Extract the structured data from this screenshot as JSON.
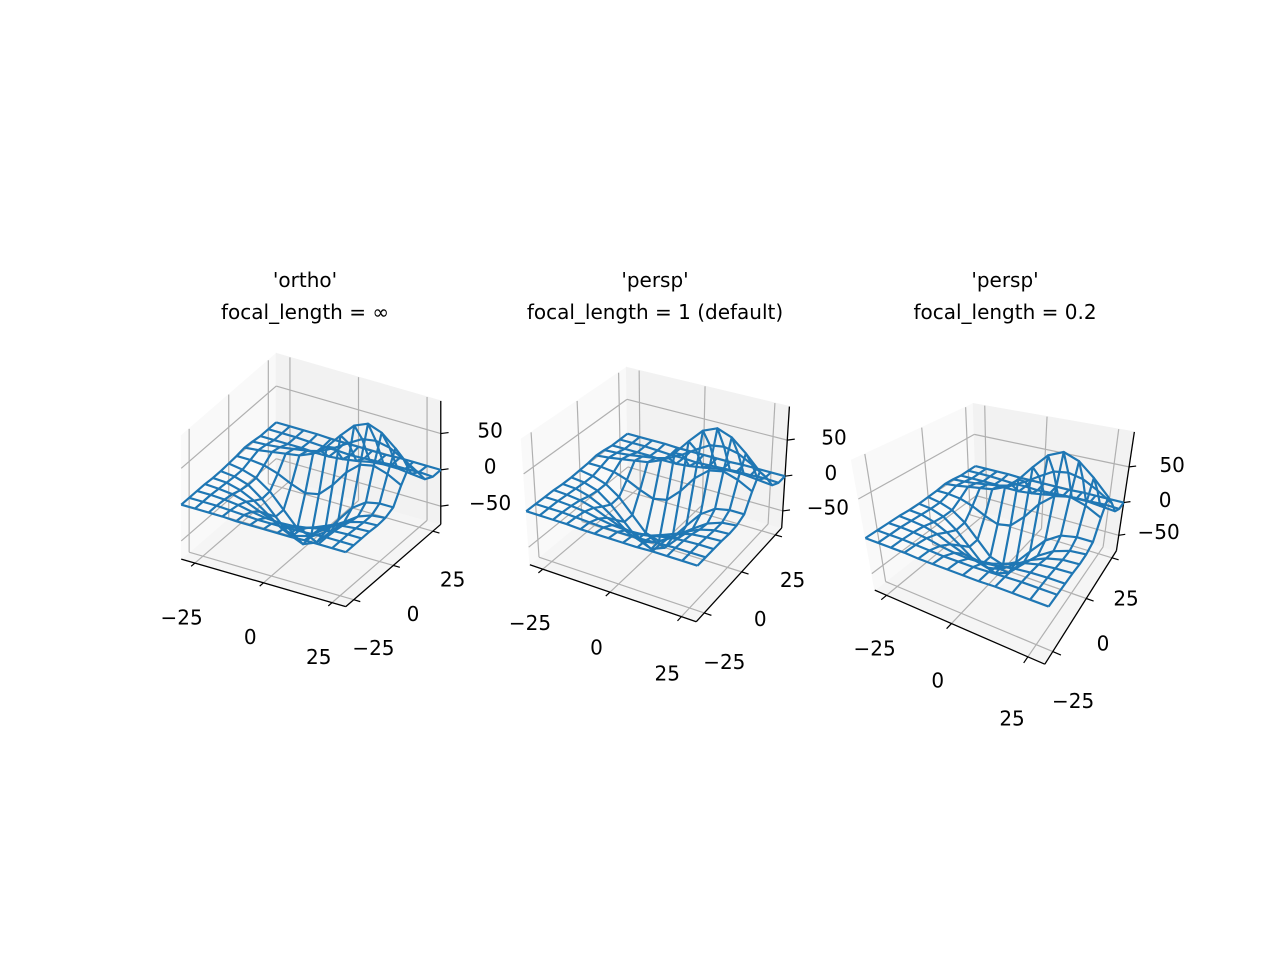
{
  "chart_data": [
    {
      "type": "wireframe",
      "title": [
        "'ortho'",
        "focal_length = ∞"
      ],
      "projection": "ortho",
      "color": "#1f77b4",
      "x": [
        -30,
        -25,
        -20,
        -15,
        -10,
        -5,
        0,
        5,
        10,
        15,
        20,
        25,
        30
      ],
      "y": [
        -30,
        -25,
        -20,
        -15,
        -10,
        -5,
        0,
        5,
        10,
        15,
        20,
        25,
        30
      ],
      "z": [
        [
          0,
          0,
          0,
          0,
          -1,
          -1,
          -1,
          -1,
          -1,
          0,
          0,
          0,
          0
        ],
        [
          0,
          0,
          0,
          -1,
          -2,
          -3,
          -3,
          -3,
          -2,
          -1,
          0,
          0,
          0
        ],
        [
          0,
          0,
          -1,
          -3,
          -7,
          -10,
          -11,
          -10,
          -7,
          -3,
          -1,
          0,
          0
        ],
        [
          0,
          -1,
          -3,
          -8,
          -16,
          -23,
          -26,
          -23,
          -16,
          -8,
          -3,
          -1,
          0
        ],
        [
          -1,
          -2,
          -7,
          -16,
          -29,
          -43,
          -48,
          -43,
          -29,
          -16,
          -7,
          -2,
          -1
        ],
        [
          -1,
          -3,
          -9,
          -23,
          -42,
          -61,
          -69,
          -61,
          -41,
          -22,
          -9,
          -2,
          0
        ],
        [
          0,
          -3,
          -9,
          -22,
          -42,
          -62,
          -68,
          -57,
          -34,
          -12,
          1,
          5,
          5
        ],
        [
          1,
          1,
          -1,
          -7,
          -16,
          -23,
          -19,
          -1,
          22,
          38,
          42,
          36,
          26
        ],
        [
          3,
          5,
          8,
          11,
          14,
          22,
          37,
          58,
          77,
          85,
          78,
          62,
          43
        ],
        [
          2,
          3,
          5,
          8,
          11,
          16,
          26,
          38,
          49,
          52,
          48,
          38,
          26
        ],
        [
          0,
          0,
          0,
          0,
          -1,
          -1,
          1,
          4,
          8,
          10,
          10,
          8,
          6
        ],
        [
          0,
          0,
          0,
          -1,
          -2,
          -2,
          -3,
          -2,
          -1,
          0,
          0,
          1,
          0
        ],
        [
          0,
          0,
          0,
          0,
          -1,
          -1,
          -1,
          -1,
          -1,
          0,
          0,
          0,
          0
        ]
      ],
      "xlim": [
        -30,
        30
      ],
      "ylim": [
        -30,
        30
      ],
      "zlim": [
        -75,
        95
      ],
      "xticks": [
        {
          "value": -25,
          "label": "−25"
        },
        0,
        25
      ],
      "yticks": [
        {
          "value": -25,
          "label": "−25"
        },
        0,
        25
      ],
      "zticks": [
        {
          "value": -50,
          "label": "−50"
        },
        0,
        50
      ],
      "grid": true
    },
    {
      "type": "wireframe",
      "title": [
        "'persp'",
        "focal_length = 1 (default)"
      ],
      "projection": "persp",
      "focal_length": 1,
      "color": "#1f77b4",
      "x": [
        -30,
        -25,
        -20,
        -15,
        -10,
        -5,
        0,
        5,
        10,
        15,
        20,
        25,
        30
      ],
      "y": [
        -30,
        -25,
        -20,
        -15,
        -10,
        -5,
        0,
        5,
        10,
        15,
        20,
        25,
        30
      ],
      "z": [
        [
          0,
          0,
          0,
          0,
          -1,
          -1,
          -1,
          -1,
          -1,
          0,
          0,
          0,
          0
        ],
        [
          0,
          0,
          0,
          -1,
          -2,
          -3,
          -3,
          -3,
          -2,
          -1,
          0,
          0,
          0
        ],
        [
          0,
          0,
          -1,
          -3,
          -7,
          -10,
          -11,
          -10,
          -7,
          -3,
          -1,
          0,
          0
        ],
        [
          0,
          -1,
          -3,
          -8,
          -16,
          -23,
          -26,
          -23,
          -16,
          -8,
          -3,
          -1,
          0
        ],
        [
          -1,
          -2,
          -7,
          -16,
          -29,
          -43,
          -48,
          -43,
          -29,
          -16,
          -7,
          -2,
          -1
        ],
        [
          -1,
          -3,
          -9,
          -23,
          -42,
          -61,
          -69,
          -61,
          -41,
          -22,
          -9,
          -2,
          0
        ],
        [
          0,
          -3,
          -9,
          -22,
          -42,
          -62,
          -68,
          -57,
          -34,
          -12,
          1,
          5,
          5
        ],
        [
          1,
          1,
          -1,
          -7,
          -16,
          -23,
          -19,
          -1,
          22,
          38,
          42,
          36,
          26
        ],
        [
          3,
          5,
          8,
          11,
          14,
          22,
          37,
          58,
          77,
          85,
          78,
          62,
          43
        ],
        [
          2,
          3,
          5,
          8,
          11,
          16,
          26,
          38,
          49,
          52,
          48,
          38,
          26
        ],
        [
          0,
          0,
          0,
          0,
          -1,
          -1,
          1,
          4,
          8,
          10,
          10,
          8,
          6
        ],
        [
          0,
          0,
          0,
          -1,
          -2,
          -2,
          -3,
          -2,
          -1,
          0,
          0,
          1,
          0
        ],
        [
          0,
          0,
          0,
          0,
          -1,
          -1,
          -1,
          -1,
          -1,
          0,
          0,
          0,
          0
        ]
      ],
      "xlim": [
        -30,
        30
      ],
      "ylim": [
        -30,
        30
      ],
      "zlim": [
        -75,
        95
      ],
      "xticks": [
        {
          "value": -25,
          "label": "−25"
        },
        0,
        25
      ],
      "yticks": [
        {
          "value": -25,
          "label": "−25"
        },
        0,
        25
      ],
      "zticks": [
        {
          "value": -50,
          "label": "−50"
        },
        0,
        50
      ],
      "grid": true
    },
    {
      "type": "wireframe",
      "title": [
        "'persp'",
        "focal_length = 0.2"
      ],
      "projection": "persp",
      "focal_length": 0.2,
      "color": "#1f77b4",
      "x": [
        -30,
        -25,
        -20,
        -15,
        -10,
        -5,
        0,
        5,
        10,
        15,
        20,
        25,
        30
      ],
      "y": [
        -30,
        -25,
        -20,
        -15,
        -10,
        -5,
        0,
        5,
        10,
        15,
        20,
        25,
        30
      ],
      "z": [
        [
          0,
          0,
          0,
          0,
          -1,
          -1,
          -1,
          -1,
          -1,
          0,
          0,
          0,
          0
        ],
        [
          0,
          0,
          0,
          -1,
          -2,
          -3,
          -3,
          -3,
          -2,
          -1,
          0,
          0,
          0
        ],
        [
          0,
          0,
          -1,
          -3,
          -7,
          -10,
          -11,
          -10,
          -7,
          -3,
          -1,
          0,
          0
        ],
        [
          0,
          -1,
          -3,
          -8,
          -16,
          -23,
          -26,
          -23,
          -16,
          -8,
          -3,
          -1,
          0
        ],
        [
          -1,
          -2,
          -7,
          -16,
          -29,
          -43,
          -48,
          -43,
          -29,
          -16,
          -7,
          -2,
          -1
        ],
        [
          -1,
          -3,
          -9,
          -23,
          -42,
          -61,
          -69,
          -61,
          -41,
          -22,
          -9,
          -2,
          0
        ],
        [
          0,
          -3,
          -9,
          -22,
          -42,
          -62,
          -68,
          -57,
          -34,
          -12,
          1,
          5,
          5
        ],
        [
          1,
          1,
          -1,
          -7,
          -16,
          -23,
          -19,
          -1,
          22,
          38,
          42,
          36,
          26
        ],
        [
          3,
          5,
          8,
          11,
          14,
          22,
          37,
          58,
          77,
          85,
          78,
          62,
          43
        ],
        [
          2,
          3,
          5,
          8,
          11,
          16,
          26,
          38,
          49,
          52,
          48,
          38,
          26
        ],
        [
          0,
          0,
          0,
          0,
          -1,
          -1,
          1,
          4,
          8,
          10,
          10,
          8,
          6
        ],
        [
          0,
          0,
          0,
          -1,
          -2,
          -2,
          -3,
          -2,
          -1,
          0,
          0,
          1,
          0
        ],
        [
          0,
          0,
          0,
          0,
          -1,
          -1,
          -1,
          -1,
          -1,
          0,
          0,
          0,
          0
        ]
      ],
      "xlim": [
        -30,
        30
      ],
      "ylim": [
        -30,
        30
      ],
      "zlim": [
        -75,
        95
      ],
      "xticks": [
        {
          "value": -25,
          "label": "−25"
        },
        0,
        25
      ],
      "yticks": [
        {
          "value": -25,
          "label": "−25"
        },
        0,
        25
      ],
      "zticks": [
        {
          "value": -50,
          "label": "−50"
        },
        0,
        50
      ],
      "grid": true
    }
  ]
}
